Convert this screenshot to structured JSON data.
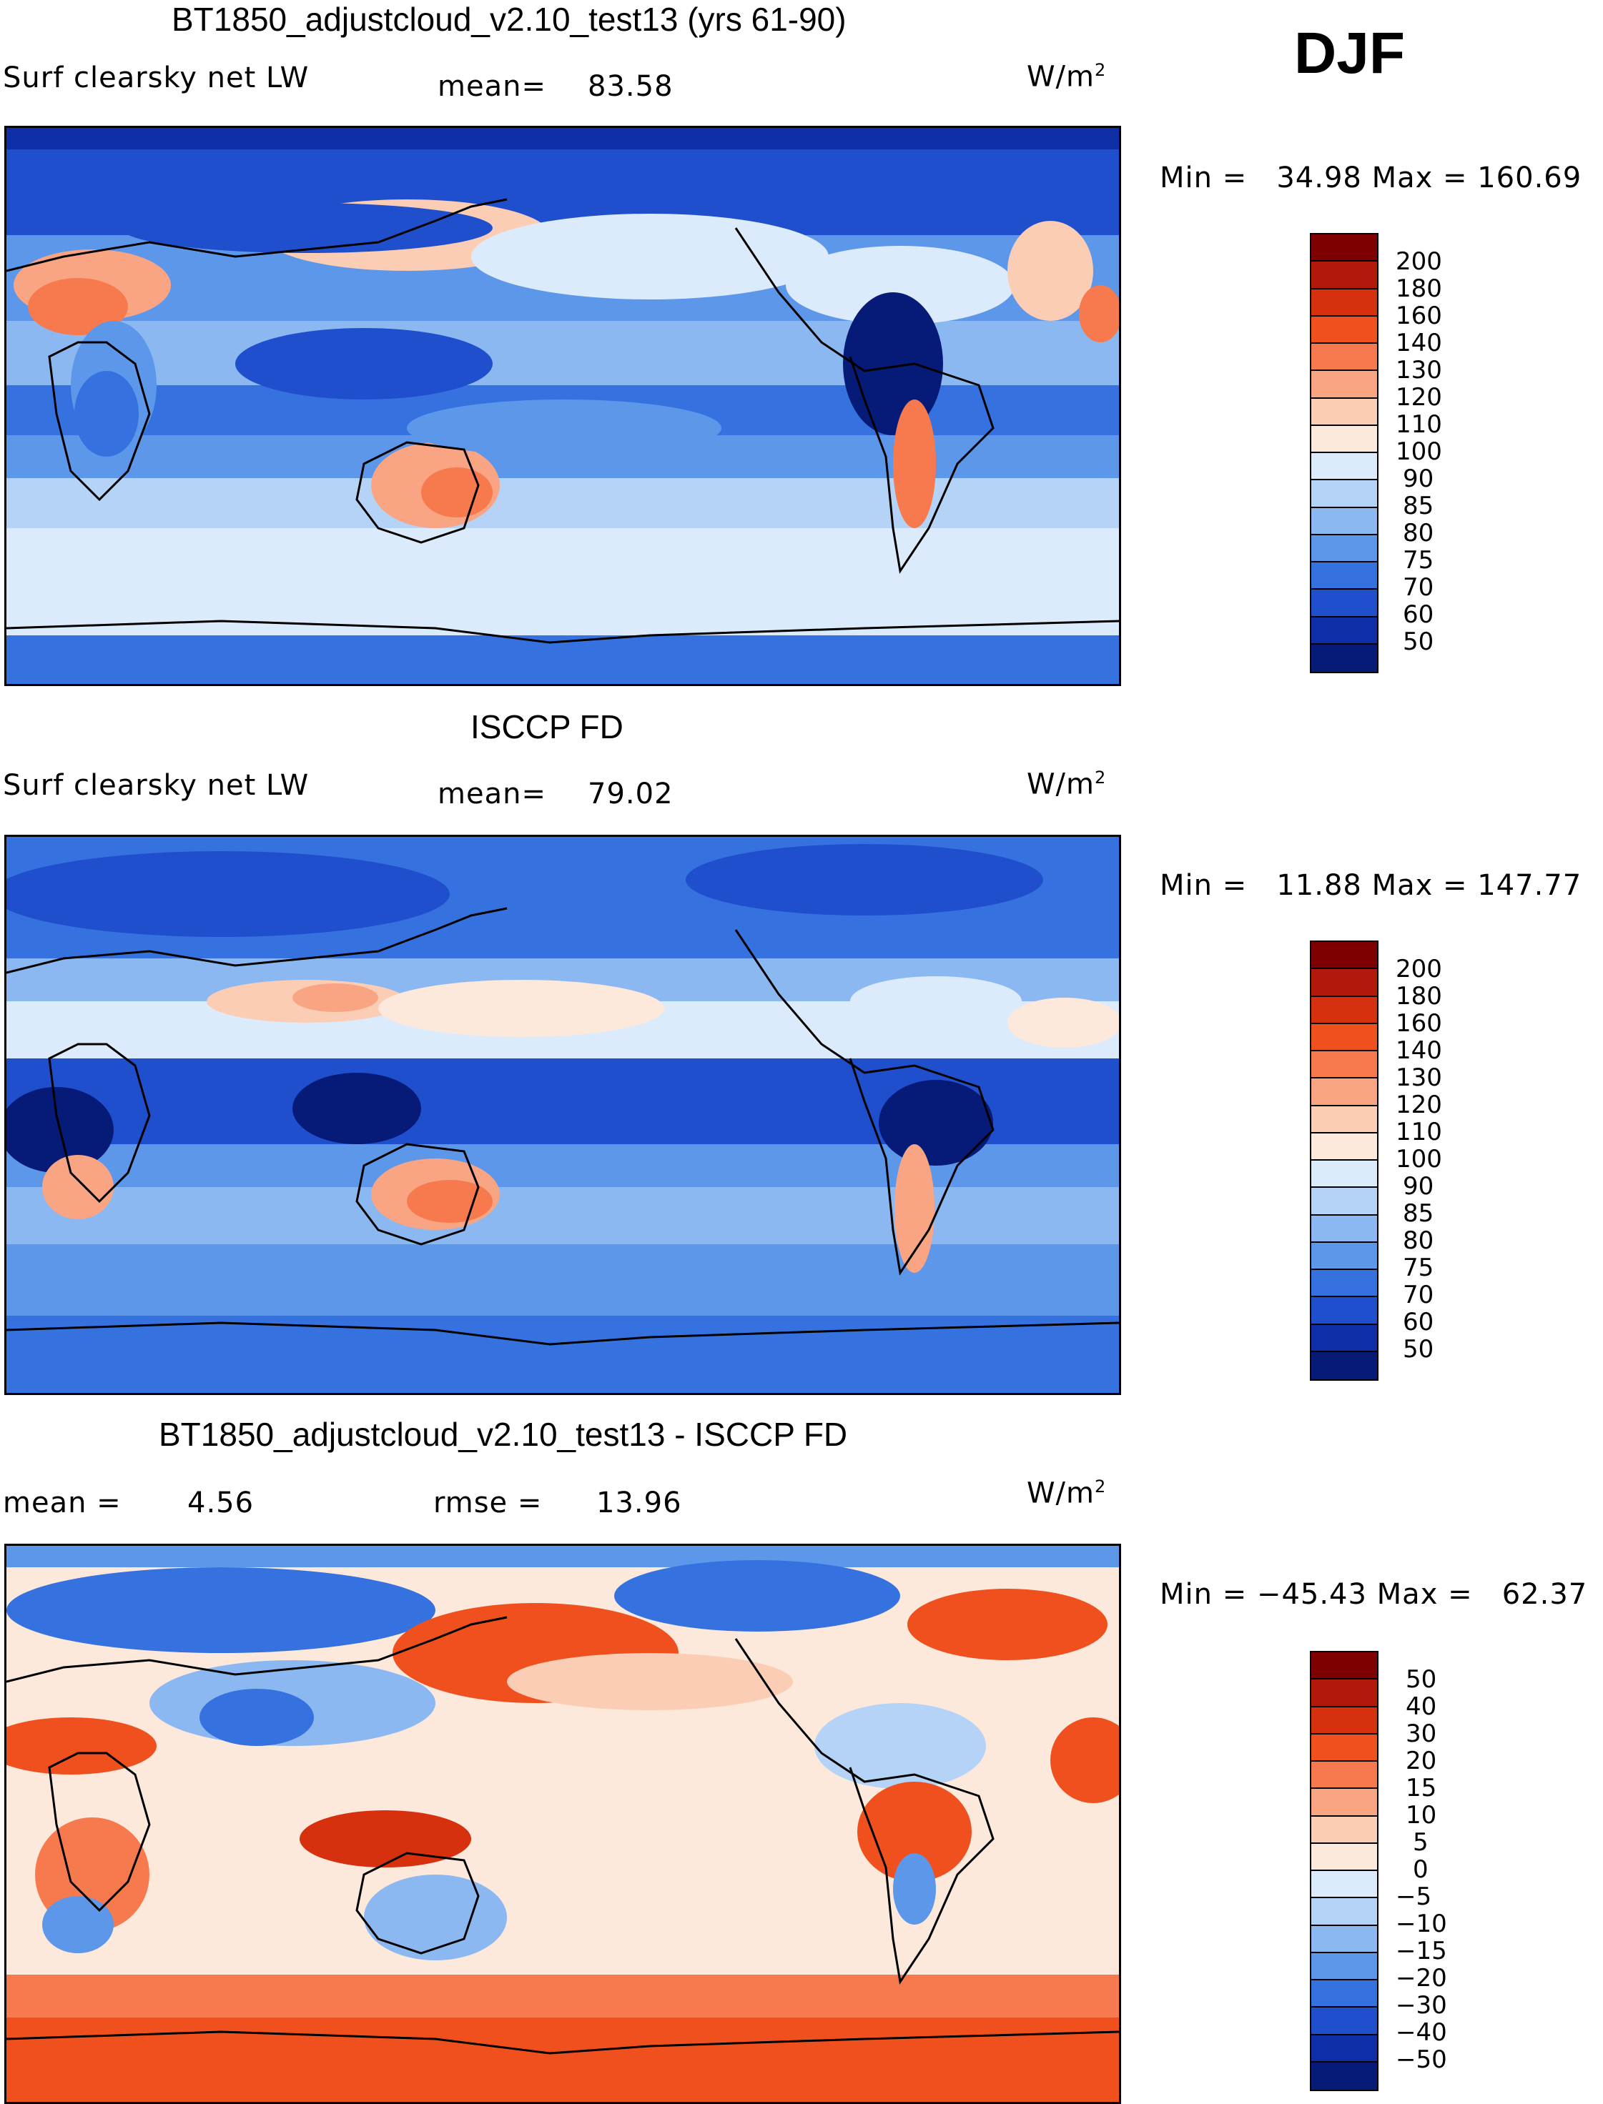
{
  "season": "DJF",
  "units_base": "W/m",
  "units_exp": "2",
  "panels": [
    {
      "title": "BT1850_adjustcloud_v2.10_test13 (yrs 61-90)",
      "left_label": "Surf clearsky net LW",
      "stat_label": "mean=",
      "stat_value": "83.58",
      "minmax": "Min =   34.98 Max = 160.69",
      "colorbar_ticks": [
        "200",
        "180",
        "160",
        "140",
        "130",
        "120",
        "110",
        "100",
        "90",
        "85",
        "80",
        "75",
        "70",
        "60",
        "50"
      ],
      "colorbar_colors": [
        "#7f0000",
        "#b2180b",
        "#d7300f",
        "#f0501e",
        "#f77a4f",
        "#f9a583",
        "#fbcdb4",
        "#fde9dc",
        "#dcebfb",
        "#b4d3f7",
        "#8cb8f2",
        "#5d97ea",
        "#3572e0",
        "#1f4fcc",
        "#0f2fa8",
        "#061a78"
      ]
    },
    {
      "title": "ISCCP FD",
      "left_label": "Surf clearsky net LW",
      "stat_label": "mean=",
      "stat_value": "79.02",
      "minmax": "Min =   11.88 Max = 147.77",
      "colorbar_ticks": [
        "200",
        "180",
        "160",
        "140",
        "130",
        "120",
        "110",
        "100",
        "90",
        "85",
        "80",
        "75",
        "70",
        "60",
        "50"
      ],
      "colorbar_colors": [
        "#7f0000",
        "#b2180b",
        "#d7300f",
        "#f0501e",
        "#f77a4f",
        "#f9a583",
        "#fbcdb4",
        "#fde9dc",
        "#dcebfb",
        "#b4d3f7",
        "#8cb8f2",
        "#5d97ea",
        "#3572e0",
        "#1f4fcc",
        "#0f2fa8",
        "#061a78"
      ]
    },
    {
      "title": "BT1850_adjustcloud_v2.10_test13 - ISCCP FD",
      "left_label": "mean =",
      "left_value": "4.56",
      "stat_label": "rmse =",
      "stat_value": "13.96",
      "minmax": "Min = −45.43 Max =   62.37",
      "colorbar_ticks": [
        "50",
        "40",
        "30",
        "20",
        "15",
        "10",
        "5",
        "0",
        "−5",
        "−10",
        "−15",
        "−20",
        "−30",
        "−40",
        "−50"
      ],
      "colorbar_colors": [
        "#7f0000",
        "#b2180b",
        "#d7300f",
        "#f0501e",
        "#f77a4f",
        "#f9a583",
        "#fbcdb4",
        "#fde9dc",
        "#dcebfb",
        "#b4d3f7",
        "#8cb8f2",
        "#5d97ea",
        "#3572e0",
        "#1f4fcc",
        "#0f2fa8",
        "#061a78"
      ]
    }
  ]
}
